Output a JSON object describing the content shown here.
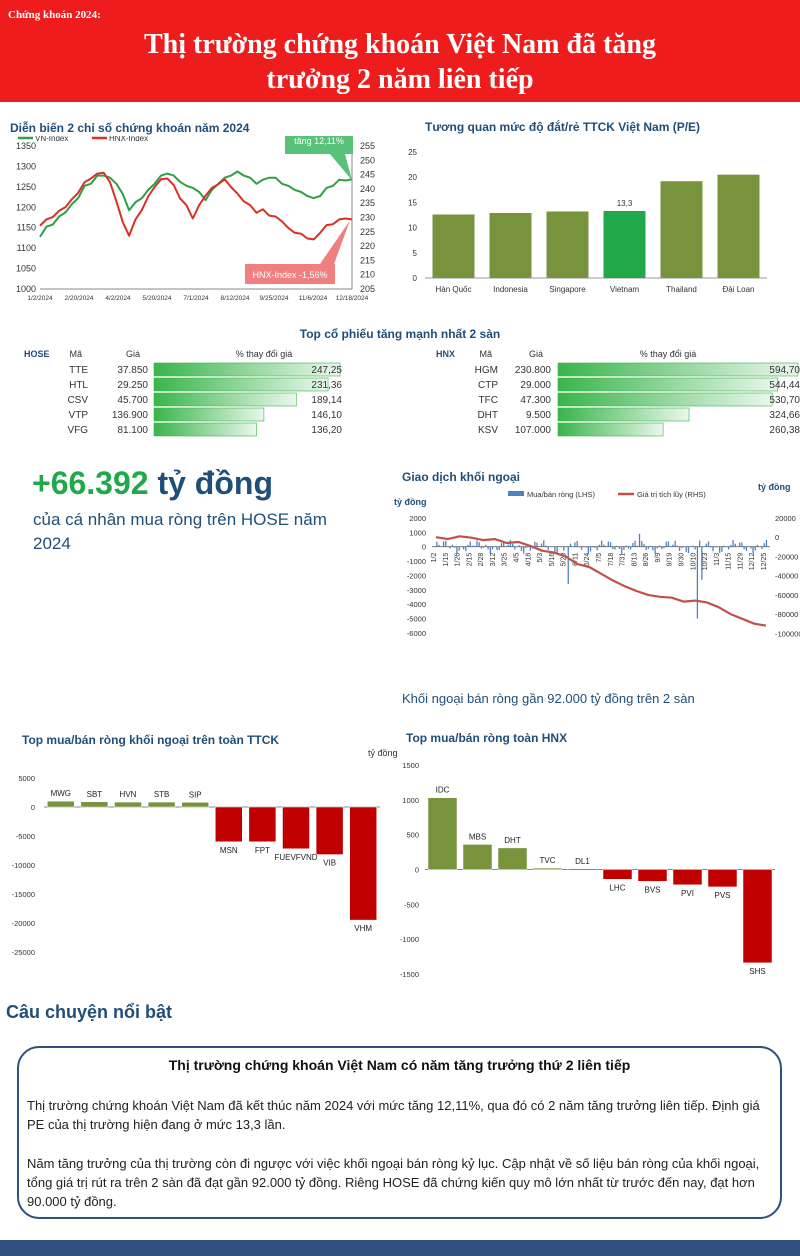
{
  "header": {
    "kicker": "Chứng khoán 2024:",
    "title_line1": "Thị trường chứng khoán Việt Nam đã tăng",
    "title_line2": "trưởng 2 năm liên tiếp"
  },
  "colors": {
    "header_red": "#ee1c1c",
    "navy": "#1f4e79",
    "green": "#20a84a",
    "olive": "#77933c",
    "bar_red": "#c00000",
    "line_red": "#d93025",
    "line_green": "#2e9e47",
    "foreign_blue": "#4f81bd",
    "cum_red": "#c0504d"
  },
  "big_stat": {
    "number": "+66.392",
    "unit": "tỷ đồng",
    "subtitle": "của cá nhân mua ròng trên HOSE năm 2024"
  },
  "foreign_note": "Khối ngoại bán ròng gần 92.000 tỷ đồng trên 2 sàn",
  "story": {
    "heading": "Câu chuyện nổi bật",
    "title": "Thị trường chứng khoán Việt Nam có năm tăng trưởng thứ 2 liên tiếp",
    "p1": "Thị trường chứng khoán Việt Nam đã kết thúc năm 2024 với mức tăng 12,11%, qua đó có 2 năm tăng trưởng liên tiếp. Định giá PE của thị trường hiện đang ở mức 13,3 lần.",
    "p2": "Năm tăng trưởng của thị trường còn đi ngược với việc khối ngoại bán ròng kỷ lục. Cập nhật về số liệu bán ròng của khối ngoại, tổng giá trị rút ra trên 2 sàn đã đạt gần 92.000 tỷ đồng. Riêng HOSE đã chứng kiến quy mô lớn nhất từ trước đến nay, đạt hơn 90.000 tỷ đồng."
  },
  "top_gainers_title": "Top cổ phiếu tăng mạnh nhất 2 sàn",
  "chart_data": [
    {
      "id": "index",
      "type": "line",
      "title": "Diễn biến 2 chỉ số chứng khoán năm 2024",
      "legend": [
        "VN-Index",
        "HNX-Index"
      ],
      "x_ticks": [
        "1/2/2024",
        "2/20/2024",
        "4/2/2024",
        "5/20/2024",
        "7/1/2024",
        "8/12/2024",
        "9/25/2024",
        "11/6/2024",
        "12/18/2024"
      ],
      "y_left_ticks": [
        1000,
        1050,
        1100,
        1150,
        1200,
        1250,
        1300,
        1350
      ],
      "y_left_range": [
        1000,
        1350
      ],
      "y_right_ticks": [
        205,
        210,
        215,
        220,
        225,
        230,
        235,
        240,
        245,
        250,
        255
      ],
      "y_right_range": [
        205,
        255
      ],
      "series": [
        {
          "name": "VN-Index",
          "axis": "left",
          "values": [
            1130,
            1150,
            1160,
            1175,
            1190,
            1205,
            1225,
            1250,
            1260,
            1275,
            1280,
            1270,
            1260,
            1230,
            1195,
            1210,
            1225,
            1240,
            1260,
            1275,
            1285,
            1275,
            1265,
            1250,
            1250,
            1235,
            1220,
            1240,
            1260,
            1270,
            1280,
            1285,
            1280,
            1270,
            1260,
            1265,
            1275,
            1270,
            1260,
            1250,
            1245,
            1235,
            1230,
            1220,
            1230,
            1245,
            1255,
            1265,
            1268,
            1266
          ]
        },
        {
          "name": "HNX-Index",
          "axis": "right",
          "values": [
            227.5,
            229,
            230.5,
            232,
            234,
            236,
            239,
            242,
            244,
            245,
            246,
            242,
            236,
            228,
            224,
            229,
            233,
            237,
            241,
            243,
            244,
            241,
            237,
            234,
            230,
            234,
            238,
            240,
            242,
            243,
            241,
            238,
            236,
            234,
            232,
            232.5,
            231,
            230,
            229,
            226,
            225,
            224,
            223,
            222,
            225,
            227,
            228,
            229,
            230,
            229
          ]
        }
      ],
      "annotations": [
        {
          "text": "tăng 12,11%",
          "series": "VN-Index"
        },
        {
          "text": "HNX-Index -1,56%",
          "series": "HNX-Index"
        }
      ]
    },
    {
      "id": "pe",
      "type": "bar",
      "title": "Tương quan mức độ đắt/rẻ TTCK Việt Nam (P/E)",
      "categories": [
        "Hàn Quốc",
        "Indonesia",
        "Singapore",
        "Vietnam",
        "Thailand",
        "Đài Loan"
      ],
      "values": [
        12.6,
        12.9,
        13.2,
        13.3,
        19.2,
        20.5
      ],
      "highlight": "Vietnam",
      "highlight_label": "13,3",
      "y_ticks": [
        0,
        5,
        10,
        15,
        20,
        25
      ],
      "ylim": [
        0,
        25
      ]
    },
    {
      "id": "hose_gainers",
      "type": "table",
      "exchange": "HOSE",
      "columns": [
        "Mã",
        "Giá",
        "% thay đổi giá"
      ],
      "rows": [
        {
          "code": "TTE",
          "price": "37.850",
          "change": 247.25,
          "change_label": "247,25"
        },
        {
          "code": "HTL",
          "price": "29.250",
          "change": 231.36,
          "change_label": "231,36"
        },
        {
          "code": "CSV",
          "price": "45.700",
          "change": 189.14,
          "change_label": "189,14"
        },
        {
          "code": "VTP",
          "price": "136.900",
          "change": 146.1,
          "change_label": "146,10"
        },
        {
          "code": "VFG",
          "price": "81.100",
          "change": 136.2,
          "change_label": "136,20"
        }
      ]
    },
    {
      "id": "hnx_gainers",
      "type": "table",
      "exchange": "HNX",
      "columns": [
        "Mã",
        "Giá",
        "% thay đổi giá"
      ],
      "rows": [
        {
          "code": "HGM",
          "price": "230.800",
          "change": 594.7,
          "change_label": "594,70"
        },
        {
          "code": "CTP",
          "price": "29.000",
          "change": 544.44,
          "change_label": "544,44"
        },
        {
          "code": "TFC",
          "price": "47.300",
          "change": 530.7,
          "change_label": "530,70"
        },
        {
          "code": "DHT",
          "price": "9.500",
          "change": 324.66,
          "change_label": "324,66"
        },
        {
          "code": "KSV",
          "price": "107.000",
          "change": 260.38,
          "change_label": "260,38"
        }
      ]
    },
    {
      "id": "foreign",
      "type": "bar",
      "title": "Giao dịch khối ngoại",
      "unit_left": "tỷ đồng",
      "unit_right": "tỷ đồng",
      "legend": [
        "Mua/bán ròng (LHS)",
        "Giá trị tích lũy (RHS)"
      ],
      "y_left_ticks": [
        2000,
        1000,
        0,
        -1000,
        -2000,
        -3000,
        -4000,
        -5000,
        -6000
      ],
      "y_left_range": [
        -6500,
        2000
      ],
      "y_right_ticks": [
        20000,
        0,
        -20000,
        -40000,
        -60000,
        -80000,
        -100000
      ],
      "y_right_range": [
        -107000,
        20000
      ],
      "x_ticks": [
        "1/2",
        "1/15",
        "1/26",
        "2/15",
        "2/28",
        "3/12",
        "3/25",
        "4/5",
        "4/18",
        "5/3",
        "5/16",
        "5/29",
        "6/11",
        "6/24",
        "7/5",
        "7/18",
        "7/31",
        "8/13",
        "8/26",
        "9/9",
        "9/19",
        "9/30",
        "10/10",
        "10/23",
        "11/3",
        "11/15",
        "11/29",
        "12/12",
        "12/25"
      ],
      "cumulative": [
        0,
        -2000,
        1000,
        -500,
        -3000,
        -2000,
        -6000,
        -5000,
        -9000,
        -14000,
        -16000,
        -20000,
        -28000,
        -31000,
        -38000,
        -45000,
        -51000,
        -56000,
        -60000,
        -62000,
        -63000,
        -67000,
        -66000,
        -68000,
        -73000,
        -80000,
        -85000,
        -90000,
        -92000
      ]
    },
    {
      "id": "foreign_top_all",
      "type": "bar",
      "title": "Top mua/bán ròng khối ngoại trên toàn TTCK",
      "unit": "tỷ đồng",
      "categories": [
        "MWG",
        "SBT",
        "HVN",
        "STB",
        "SIP",
        "MSN",
        "FPT",
        "FUEVFVND",
        "VIB",
        "VHM"
      ],
      "values": [
        1000,
        900,
        850,
        850,
        800,
        -6000,
        -6000,
        -7200,
        -8200,
        -19500
      ],
      "y_ticks": [
        5000,
        0,
        -5000,
        -10000,
        -15000,
        -20000,
        -25000
      ],
      "ylim": [
        -25000,
        5000
      ]
    },
    {
      "id": "foreign_top_hnx",
      "type": "bar",
      "title": "Top mua/bán ròng toàn HNX",
      "categories": [
        "IDC",
        "MBS",
        "DHT",
        "TVC",
        "DL1",
        "LHC",
        "BVS",
        "PVI",
        "PVS",
        "SHS"
      ],
      "values": [
        1030,
        360,
        310,
        20,
        10,
        -140,
        -170,
        -220,
        -250,
        -1340
      ],
      "y_ticks": [
        1500,
        1000,
        500,
        0,
        -500,
        -1000,
        -1500
      ],
      "ylim": [
        -1500,
        1500
      ]
    }
  ]
}
